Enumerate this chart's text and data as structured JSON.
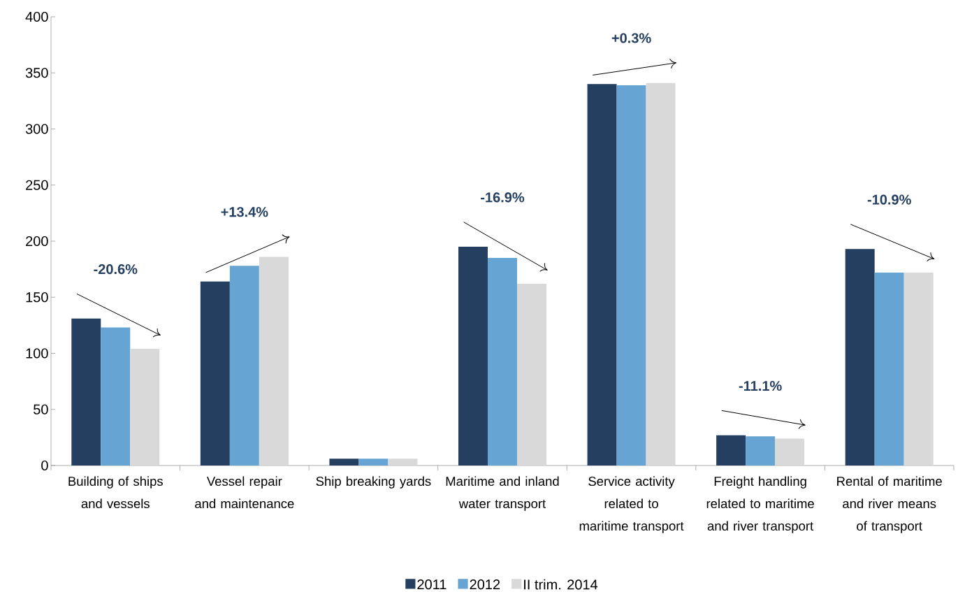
{
  "chart_data": {
    "type": "bar",
    "categories": [
      "Building of ships and vessels",
      "Vessel repair and maintenance",
      "Ship breaking yards",
      "Maritime and inland water transport",
      "Service activity related to maritime transport",
      "Freight handling related to maritime and river transport",
      "Rental of maritime and river means of transport"
    ],
    "series": [
      {
        "name": "2011",
        "color": "#243f60",
        "values": [
          131,
          164,
          6,
          195,
          340,
          27,
          193
        ]
      },
      {
        "name": "2012",
        "color": "#66a5d3",
        "values": [
          123,
          178,
          6,
          185,
          339,
          26,
          172
        ]
      },
      {
        "name": "II trim. 2014",
        "color": "#d9d9d9",
        "values": [
          104,
          186,
          6,
          162,
          341,
          24,
          172
        ]
      }
    ],
    "ylim": [
      0,
      400
    ],
    "yticks": [
      0,
      50,
      100,
      150,
      200,
      250,
      300,
      350,
      400
    ],
    "legend": "bottom",
    "grid": false,
    "annotations": [
      "-20.6%",
      "+13.4%",
      "-16.9%",
      "+0.3%",
      "-11.1%",
      "-10.9%"
    ]
  }
}
